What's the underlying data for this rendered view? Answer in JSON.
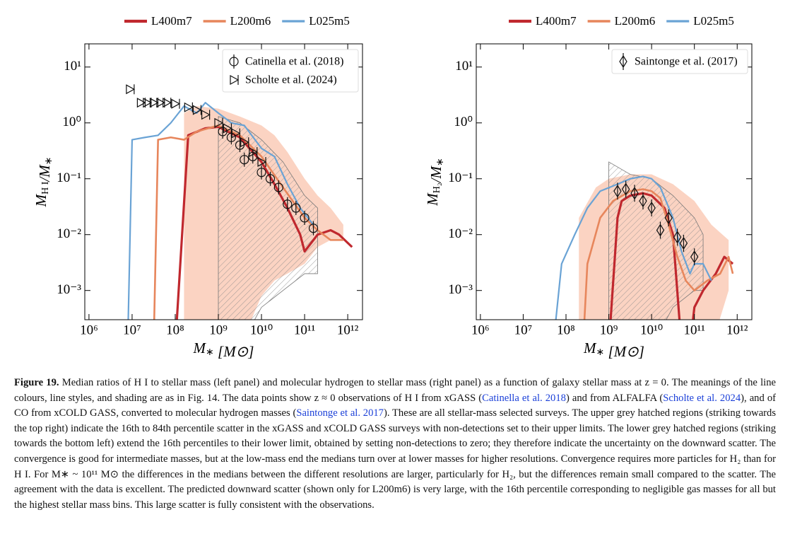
{
  "chart_data": [
    {
      "type": "line",
      "xlabel": [
        {
          "text": "M",
          "sub": "∗"
        },
        {
          "text": " [M⊙]"
        }
      ],
      "ylabel": [
        {
          "text": "M",
          "sub": "H I"
        },
        {
          "text": "/M",
          "sub": "∗"
        }
      ],
      "log_x": true,
      "log_y": true,
      "xlim": [
        800000.0,
        2200000000000.0
      ],
      "ylim": [
        0.0003,
        26
      ],
      "xticks": [
        {
          "value": 1000000.0,
          "label": "10⁶"
        },
        {
          "value": 10000000.0,
          "label": "10⁷"
        },
        {
          "value": 100000000.0,
          "label": "10⁸"
        },
        {
          "value": 1000000000.0,
          "label": "10⁹"
        },
        {
          "value": 10000000000.0,
          "label": "10¹⁰"
        },
        {
          "value": 100000000000.0,
          "label": "10¹¹"
        },
        {
          "value": 1000000000000.0,
          "label": "10¹²"
        }
      ],
      "yticks": [
        {
          "value": 10,
          "label": "10¹"
        },
        {
          "value": 1,
          "label": "10⁰"
        },
        {
          "value": 0.1,
          "label": "10⁻¹"
        },
        {
          "value": 0.01,
          "label": "10⁻²"
        },
        {
          "value": 0.001,
          "label": "10⁻³"
        }
      ],
      "band": {
        "color": "#fbd3c2",
        "x": [
          160000000.0,
          316000000.0,
          1000000000.0,
          3160000000.0,
          10000000000.0,
          20000000000.0,
          40000000000.0,
          100000000000.0,
          200000000000.0,
          400000000000.0,
          790000000000.0
        ],
        "upper": [
          1.5,
          2.0,
          1.8,
          1.3,
          0.9,
          0.6,
          0.3,
          0.1,
          0.05,
          0.03,
          0.015
        ],
        "lower": [
          0.0001,
          0.0001,
          0.0001,
          0.0001,
          0.0008,
          0.0015,
          0.002,
          0.003,
          0.006,
          0.008,
          0.008
        ]
      },
      "hatched": {
        "x": [
          1000000000.0,
          3160000000.0,
          10000000000.0,
          31600000000.0,
          100000000000.0,
          200000000000.0
        ],
        "upper": [
          1.3,
          1.0,
          0.5,
          0.2,
          0.05,
          0.03
        ],
        "lower": [
          0.0001,
          0.0001,
          0.0005,
          0.001,
          0.002,
          0.002
        ]
      },
      "series": [
        {
          "name": "L400m7",
          "color": "#c0282e",
          "width": 3.2,
          "x": [
            100000000.0,
            200000000.0,
            500000000.0,
            1000000000.0,
            3160000000.0,
            10000000000.0,
            20000000000.0,
            40000000000.0,
            79000000000.0,
            100000000000.0,
            200000000000.0,
            400000000000.0,
            630000000000.0,
            1260000000000.0
          ],
          "values": [
            0.0001,
            0.6,
            0.8,
            0.85,
            0.55,
            0.2,
            0.08,
            0.03,
            0.01,
            0.005,
            0.01,
            0.012,
            0.01,
            0.006
          ]
        },
        {
          "name": "L200m6",
          "color": "#e7865c",
          "width": 2.6,
          "x": [
            31600000.0,
            40000000.0,
            79000000.0,
            160000000.0,
            316000000.0,
            1000000000.0,
            3160000000.0,
            10000000000.0,
            31600000000.0,
            100000000000.0,
            200000000000.0,
            400000000000.0,
            790000000000.0
          ],
          "values": [
            0.0001,
            0.5,
            0.55,
            0.5,
            0.7,
            0.9,
            0.6,
            0.25,
            0.07,
            0.02,
            0.012,
            0.008,
            0.008
          ]
        },
        {
          "name": "L025m5",
          "color": "#6aa3d5",
          "width": 2.2,
          "x": [
            7900000.0,
            10000000.0,
            20000000.0,
            40000000.0,
            79000000.0,
            160000000.0,
            316000000.0,
            500000000.0,
            1000000000.0,
            2000000000.0,
            4000000000.0,
            10000000000.0,
            20000000000.0,
            40000000000.0,
            79000000000.0,
            160000000000.0
          ],
          "values": [
            0.0001,
            0.5,
            0.55,
            0.6,
            1.0,
            2.0,
            1.5,
            2.3,
            1.5,
            1.0,
            0.9,
            0.35,
            0.25,
            0.08,
            0.03,
            0.015
          ]
        }
      ],
      "observations": [
        {
          "name": "Catinella et al. (2018)",
          "marker": "circle",
          "x": [
            1260000000.0,
            2000000000.0,
            3160000000.0,
            4000000000.0,
            6300000000.0,
            10000000000.0,
            16000000000.0,
            25000000000.0,
            40000000000.0,
            63000000000.0,
            100000000000.0,
            160000000000.0
          ],
          "values": [
            0.7,
            0.55,
            0.4,
            0.22,
            0.25,
            0.13,
            0.1,
            0.07,
            0.035,
            0.03,
            0.02,
            0.013
          ]
        },
        {
          "name": "Scholte et al. (2024)",
          "marker": "triangle",
          "x": [
            8900000.0,
            16000000.0,
            22000000.0,
            31600000.0,
            45000000.0,
            63000000.0,
            100000000.0,
            200000000.0,
            316000000.0,
            500000000.0,
            1000000000.0,
            1600000000.0,
            2500000000.0,
            4000000000.0,
            6300000000.0,
            10000000000.0
          ],
          "values": [
            4.0,
            2.3,
            2.3,
            2.3,
            2.3,
            2.3,
            2.2,
            1.9,
            1.7,
            1.4,
            1.0,
            0.8,
            0.65,
            0.45,
            0.3,
            0.2
          ]
        }
      ]
    },
    {
      "type": "line",
      "xlabel": [
        {
          "text": "M",
          "sub": "∗"
        },
        {
          "text": " [M⊙]"
        }
      ],
      "ylabel": [
        {
          "text": "M",
          "sub": "H₂"
        },
        {
          "text": "/M",
          "sub": "∗"
        }
      ],
      "log_x": true,
      "log_y": true,
      "xlim": [
        800000.0,
        2200000000000.0
      ],
      "ylim": [
        0.0003,
        26
      ],
      "xticks": [
        {
          "value": 1000000.0,
          "label": "10⁶"
        },
        {
          "value": 10000000.0,
          "label": "10⁷"
        },
        {
          "value": 100000000.0,
          "label": "10⁸"
        },
        {
          "value": 1000000000.0,
          "label": "10⁹"
        },
        {
          "value": 10000000000.0,
          "label": "10¹⁰"
        },
        {
          "value": 100000000000.0,
          "label": "10¹¹"
        },
        {
          "value": 1000000000000.0,
          "label": "10¹²"
        }
      ],
      "yticks": [
        {
          "value": 10,
          "label": "10¹"
        },
        {
          "value": 1,
          "label": "10⁰"
        },
        {
          "value": 0.1,
          "label": "10⁻¹"
        },
        {
          "value": 0.01,
          "label": "10⁻²"
        },
        {
          "value": 0.001,
          "label": "10⁻³"
        }
      ],
      "band": {
        "color": "#fbd3c2",
        "x": [
          200000000.0,
          500000000.0,
          1000000000.0,
          3160000000.0,
          10000000000.0,
          31600000000.0,
          100000000000.0,
          250000000000.0,
          630000000000.0
        ],
        "upper": [
          0.02,
          0.07,
          0.1,
          0.12,
          0.12,
          0.08,
          0.04,
          0.015,
          0.008
        ],
        "lower": [
          0.0001,
          0.0001,
          0.0001,
          0.0001,
          0.0001,
          0.0001,
          0.0001,
          0.0001,
          0.001
        ]
      },
      "hatched": {
        "x": [
          1000000000.0,
          3160000000.0,
          10000000000.0,
          31600000000.0,
          100000000000.0,
          160000000000.0
        ],
        "upper": [
          0.2,
          0.12,
          0.1,
          0.05,
          0.02,
          0.01
        ],
        "lower": [
          0.0001,
          0.0001,
          0.0001,
          0.0005,
          0.001,
          0.001
        ]
      },
      "series": [
        {
          "name": "L400m7",
          "color": "#c0282e",
          "width": 3.2,
          "x": [
            1000000000.0,
            1600000000.0,
            2000000000.0,
            3160000000.0,
            6300000000.0,
            10000000000.0,
            20000000000.0,
            31600000000.0,
            50000000000.0,
            79000000000.0,
            100000000000.0,
            160000000000.0,
            316000000000.0,
            500000000000.0,
            790000000000.0
          ],
          "values": [
            0.0001,
            0.02,
            0.04,
            0.05,
            0.055,
            0.05,
            0.03,
            0.01,
            0.0001,
            0.0001,
            0.0005,
            0.001,
            0.002,
            0.004,
            0.003
          ]
        },
        {
          "name": "L200m6",
          "color": "#e7865c",
          "width": 2.6,
          "x": [
            250000000.0,
            316000000.0,
            630000000.0,
            1260000000.0,
            3160000000.0,
            6300000000.0,
            10000000000.0,
            16000000000.0,
            25000000000.0,
            40000000000.0,
            63000000000.0,
            100000000000.0,
            200000000000.0,
            400000000000.0,
            630000000000.0,
            790000000000.0
          ],
          "values": [
            0.0001,
            0.003,
            0.02,
            0.04,
            0.06,
            0.065,
            0.06,
            0.045,
            0.015,
            0.004,
            0.0015,
            0.001,
            0.0015,
            0.002,
            0.004,
            0.002
          ]
        },
        {
          "name": "L025m5",
          "color": "#6aa3d5",
          "width": 2.2,
          "x": [
            50000000.0,
            79000000.0,
            160000000.0,
            316000000.0,
            630000000.0,
            1600000000.0,
            3160000000.0,
            6300000000.0,
            10000000000.0,
            16000000000.0,
            31600000000.0,
            50000000000.0,
            79000000000.0,
            100000000000.0,
            160000000000.0,
            250000000000.0
          ],
          "values": [
            0.0001,
            0.003,
            0.01,
            0.03,
            0.06,
            0.08,
            0.1,
            0.11,
            0.1,
            0.07,
            0.02,
            0.005,
            0.002,
            0.003,
            0.003,
            0.0015
          ]
        }
      ],
      "observations": [
        {
          "name": "Saintonge et al. (2017)",
          "marker": "diamond",
          "x": [
            1600000000.0,
            2500000000.0,
            4000000000.0,
            6300000000.0,
            10000000000.0,
            16000000000.0,
            25000000000.0,
            40000000000.0,
            56000000000.0,
            100000000000.0
          ],
          "values": [
            0.06,
            0.065,
            0.055,
            0.04,
            0.03,
            0.012,
            0.02,
            0.009,
            0.007,
            0.004
          ]
        }
      ]
    }
  ],
  "caption": {
    "label": "Figure 19.",
    "segments": [
      {
        "text": " Median ratios of H I to stellar mass (left panel) and molecular hydrogen to stellar mass (right panel) as a function of galaxy stellar mass at z = 0. The meanings of the line colours, line styles, and shading are as in Fig. 14. The data points show z ≈ 0 observations of H I from xGASS (",
        "link": false
      },
      {
        "text": "Catinella et al. 2018",
        "link": true
      },
      {
        "text": ") and from ALFALFA (",
        "link": false
      },
      {
        "text": "Scholte et al. 2024",
        "link": true
      },
      {
        "text": "), and of CO from xCOLD GASS, converted to molecular hydrogen masses (",
        "link": false
      },
      {
        "text": "Saintonge et al. 2017",
        "link": true
      },
      {
        "text": "). These are all stellar-mass selected surveys. The upper grey hatched regions (striking towards the top right) indicate the 16th to 84th percentile scatter in the xGASS and xCOLD GASS surveys with non-detections set to their upper limits. The lower grey hatched regions (striking towards the bottom left) extend the 16th percentiles to their lower limit, obtained by setting non-detections to zero; they therefore indicate the uncertainty on the downward scatter. The convergence is good for intermediate masses, but at the low-mass end the medians turn over at lower masses for higher resolutions. Convergence requires more particles for H₂ than for H I. For M∗ ~ 10¹¹ M⊙ the differences in the medians between the different resolutions are larger, particularly for H₂, but the differences remain small compared to the scatter. The agreement with the data is excellent. The predicted downward scatter (shown only for L200m6) is very large, with the 16th percentile corresponding to negligible gas masses for all but the highest stellar mass bins. This large scatter is fully consistent with the observations.",
        "link": false
      }
    ]
  }
}
